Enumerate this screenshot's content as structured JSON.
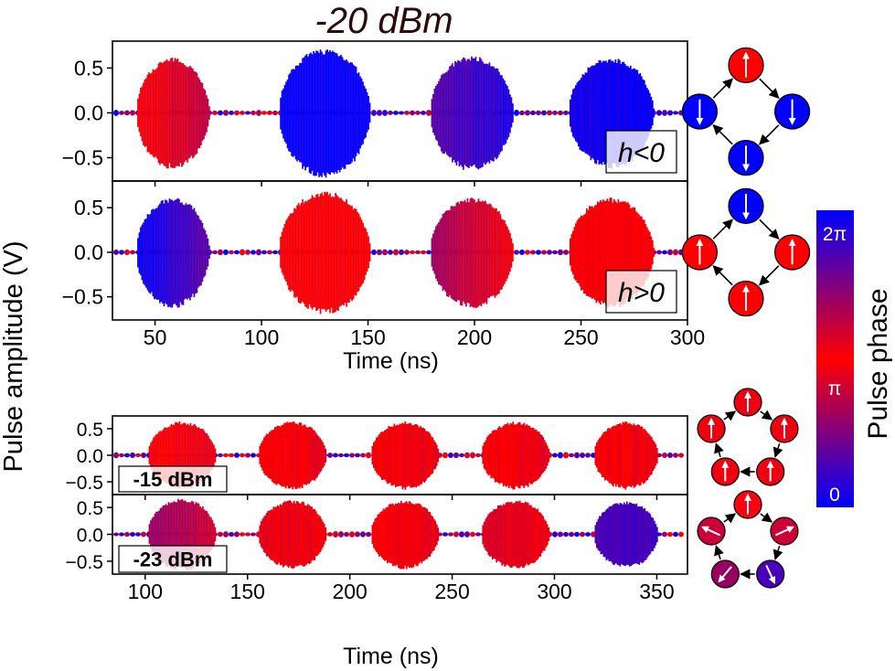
{
  "title": "-20 dBm",
  "ylabel": "Pulse amplitude (V)",
  "colorbar": {
    "label": "Pulse phase",
    "ticks": [
      "0",
      "π",
      "2π"
    ],
    "colors": {
      "zero": "#0000ff",
      "pi": "#ff0000",
      "two_pi": "#0000ff"
    }
  },
  "chart_data": [
    {
      "type": "area",
      "panel": "top-1",
      "legend": "h<0",
      "xlim": [
        30,
        300
      ],
      "ylim": [
        -0.76,
        0.8
      ],
      "yticks": [
        "0.5",
        "0.0",
        "−0.5"
      ],
      "ytick_values": [
        0.5,
        0,
        -0.5
      ],
      "pulses": [
        {
          "start": 41,
          "end": 77,
          "amplitude": 0.6,
          "phase_pi": [
            1.0,
            0.7
          ]
        },
        {
          "start": 108,
          "end": 153,
          "amplitude": 0.7,
          "phase_pi": [
            0.0,
            0.0
          ]
        },
        {
          "start": 179,
          "end": 220,
          "amplitude": 0.62,
          "phase_pi": [
            0.35,
            0.1
          ]
        },
        {
          "start": 244,
          "end": 286,
          "amplitude": 0.6,
          "phase_pi": [
            0.1,
            0.0
          ]
        }
      ]
    },
    {
      "type": "area",
      "panel": "top-2",
      "legend": "h>0",
      "xlim": [
        30,
        300
      ],
      "ylim": [
        -0.76,
        0.8
      ],
      "xlabel": "Time (ns)",
      "xticks": [
        50,
        100,
        150,
        200,
        250,
        300
      ],
      "yticks": [
        "0.5",
        "0.0",
        "−0.5"
      ],
      "ytick_values": [
        0.5,
        0,
        -0.5
      ],
      "pulses": [
        {
          "start": 41,
          "end": 77,
          "amplitude": 0.6,
          "phase_pi": [
            0.0,
            0.4
          ]
        },
        {
          "start": 108,
          "end": 153,
          "amplitude": 0.67,
          "phase_pi": [
            1.0,
            1.0
          ]
        },
        {
          "start": 179,
          "end": 220,
          "amplitude": 0.6,
          "phase_pi": [
            0.6,
            1.0
          ]
        },
        {
          "start": 244,
          "end": 286,
          "amplitude": 0.6,
          "phase_pi": [
            1.0,
            1.0
          ]
        }
      ]
    },
    {
      "type": "area",
      "panel": "bottom-1",
      "legend": "-15 dBm",
      "xlim": [
        84,
        365
      ],
      "ylim": [
        -0.74,
        0.74
      ],
      "yticks": [
        "0.5",
        "0.0",
        "−0.5"
      ],
      "ytick_values": [
        0.5,
        0,
        -0.5
      ],
      "pulses": [
        {
          "start": 101,
          "end": 136,
          "amplitude": 0.62,
          "phase_pi": [
            1.0,
            0.9
          ]
        },
        {
          "start": 155,
          "end": 190,
          "amplitude": 0.62,
          "phase_pi": [
            1.0,
            0.9
          ]
        },
        {
          "start": 210,
          "end": 245,
          "amplitude": 0.62,
          "phase_pi": [
            1.0,
            0.9
          ]
        },
        {
          "start": 264,
          "end": 299,
          "amplitude": 0.62,
          "phase_pi": [
            1.0,
            0.9
          ]
        },
        {
          "start": 319,
          "end": 352,
          "amplitude": 0.62,
          "phase_pi": [
            1.0,
            0.9
          ]
        }
      ]
    },
    {
      "type": "area",
      "panel": "bottom-2",
      "legend": "-23 dBm",
      "xlim": [
        84,
        365
      ],
      "ylim": [
        -0.74,
        0.74
      ],
      "xlabel": "Time (ns)",
      "xticks": [
        100,
        150,
        200,
        250,
        300,
        350
      ],
      "yticks": [
        "0.5",
        "0.0",
        "−0.5"
      ],
      "ytick_values": [
        0.5,
        0,
        -0.5
      ],
      "pulses": [
        {
          "start": 101,
          "end": 136,
          "amplitude": 0.65,
          "phase_pi": [
            0.6,
            0.8
          ]
        },
        {
          "start": 155,
          "end": 190,
          "amplitude": 0.62,
          "phase_pi": [
            0.9,
            0.95
          ]
        },
        {
          "start": 210,
          "end": 245,
          "amplitude": 0.62,
          "phase_pi": [
            1.0,
            0.9
          ]
        },
        {
          "start": 264,
          "end": 299,
          "amplitude": 0.62,
          "phase_pi": [
            0.85,
            0.95
          ]
        },
        {
          "start": 319,
          "end": 352,
          "amplitude": 0.6,
          "phase_pi": [
            0.3,
            0.25
          ]
        }
      ]
    }
  ],
  "diagrams": [
    {
      "shape": "square",
      "spins": [
        {
          "angle_deg": 0,
          "color": "#ff0000"
        },
        {
          "angle_deg": 180,
          "color": "#0000ff"
        },
        {
          "angle_deg": 180,
          "color": "#0000ff"
        },
        {
          "angle_deg": 180,
          "color": "#0000ff"
        }
      ]
    },
    {
      "shape": "square",
      "spins": [
        {
          "angle_deg": 180,
          "color": "#0000ff"
        },
        {
          "angle_deg": 0,
          "color": "#ff0000"
        },
        {
          "angle_deg": 0,
          "color": "#ff0000"
        },
        {
          "angle_deg": 0,
          "color": "#ff0000"
        }
      ]
    },
    {
      "shape": "pentagon",
      "spins": [
        {
          "angle_deg": 0,
          "color": "#ee0010"
        },
        {
          "angle_deg": 0,
          "color": "#ee0010"
        },
        {
          "angle_deg": 0,
          "color": "#ee0010"
        },
        {
          "angle_deg": 0,
          "color": "#ee0010"
        },
        {
          "angle_deg": 0,
          "color": "#ee0010"
        }
      ]
    },
    {
      "shape": "pentagon",
      "spins": [
        {
          "angle_deg": 0,
          "color": "#ff0010"
        },
        {
          "angle_deg": 65,
          "color": "#cc0035"
        },
        {
          "angle_deg": 155,
          "color": "#4a00b8"
        },
        {
          "angle_deg": 220,
          "color": "#98005e"
        },
        {
          "angle_deg": 295,
          "color": "#cc0038"
        }
      ]
    }
  ]
}
